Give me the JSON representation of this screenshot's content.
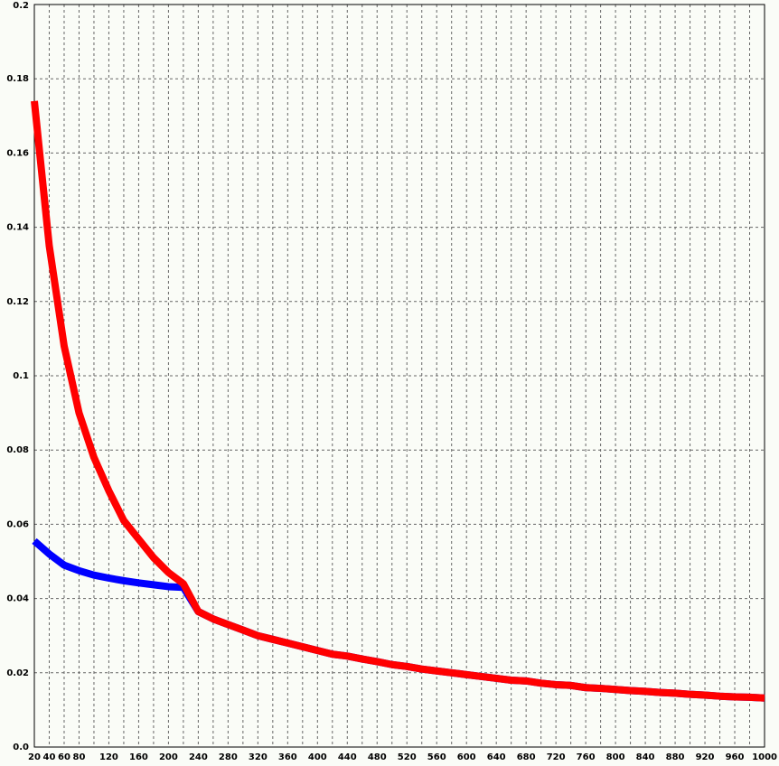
{
  "chart_data": {
    "type": "line",
    "x": [
      20,
      40,
      60,
      80,
      100,
      120,
      140,
      160,
      180,
      200,
      220,
      240,
      260,
      280,
      300,
      320,
      340,
      360,
      380,
      400,
      420,
      440,
      460,
      480,
      500,
      520,
      540,
      560,
      580,
      600,
      620,
      640,
      660,
      680,
      700,
      720,
      740,
      760,
      780,
      800,
      820,
      840,
      860,
      880,
      900,
      920,
      940,
      960,
      980,
      1000
    ],
    "series": [
      {
        "color": "#0000ff",
        "values": [
          0.0555,
          0.052,
          0.049,
          0.0475,
          0.0463,
          0.0455,
          0.0448,
          0.0442,
          0.0437,
          0.0432,
          0.043,
          0.0365,
          0.0345,
          0.033,
          0.0315,
          0.03,
          0.029,
          0.028,
          0.027,
          0.026,
          0.025,
          0.0245,
          0.0237,
          0.023,
          0.0222,
          0.0217,
          0.021,
          0.0205,
          0.02,
          0.0195,
          0.019,
          0.0185,
          0.018,
          0.0178,
          0.0172,
          0.0168,
          0.0166,
          0.016,
          0.0158,
          0.0155,
          0.0152,
          0.015,
          0.0147,
          0.0145,
          0.0142,
          0.014,
          0.0137,
          0.0135,
          0.0134,
          0.0132
        ]
      },
      {
        "color": "#ff0000",
        "values": [
          0.174,
          0.135,
          0.108,
          0.09,
          0.078,
          0.069,
          0.061,
          0.056,
          0.051,
          0.047,
          0.044,
          0.0365,
          0.0345,
          0.033,
          0.0315,
          0.03,
          0.029,
          0.028,
          0.027,
          0.026,
          0.025,
          0.0245,
          0.0237,
          0.023,
          0.0222,
          0.0217,
          0.021,
          0.0205,
          0.02,
          0.0195,
          0.019,
          0.0185,
          0.018,
          0.0178,
          0.0172,
          0.0168,
          0.0166,
          0.016,
          0.0158,
          0.0155,
          0.0152,
          0.015,
          0.0147,
          0.0145,
          0.0142,
          0.014,
          0.0137,
          0.0135,
          0.0134,
          0.0132
        ]
      }
    ],
    "xlim": [
      20,
      1000
    ],
    "xticks": [
      20,
      40,
      60,
      80,
      120,
      160,
      200,
      240,
      280,
      320,
      360,
      400,
      440,
      480,
      520,
      560,
      600,
      640,
      680,
      720,
      760,
      800,
      840,
      880,
      920,
      960,
      1000
    ],
    "xminorticks": [
      100,
      140,
      180,
      220,
      260,
      300,
      340,
      380,
      420,
      460,
      500,
      540,
      580,
      620,
      660,
      700,
      740,
      780,
      820,
      860,
      900,
      940,
      980
    ],
    "ylim": [
      0,
      0.2
    ],
    "yticks": [
      {
        "value": 0,
        "label": "0.0"
      },
      0.02,
      0.04,
      0.06,
      0.08,
      0.1,
      0.12,
      0.14,
      0.16,
      0.18,
      0.2
    ],
    "grid": true
  }
}
